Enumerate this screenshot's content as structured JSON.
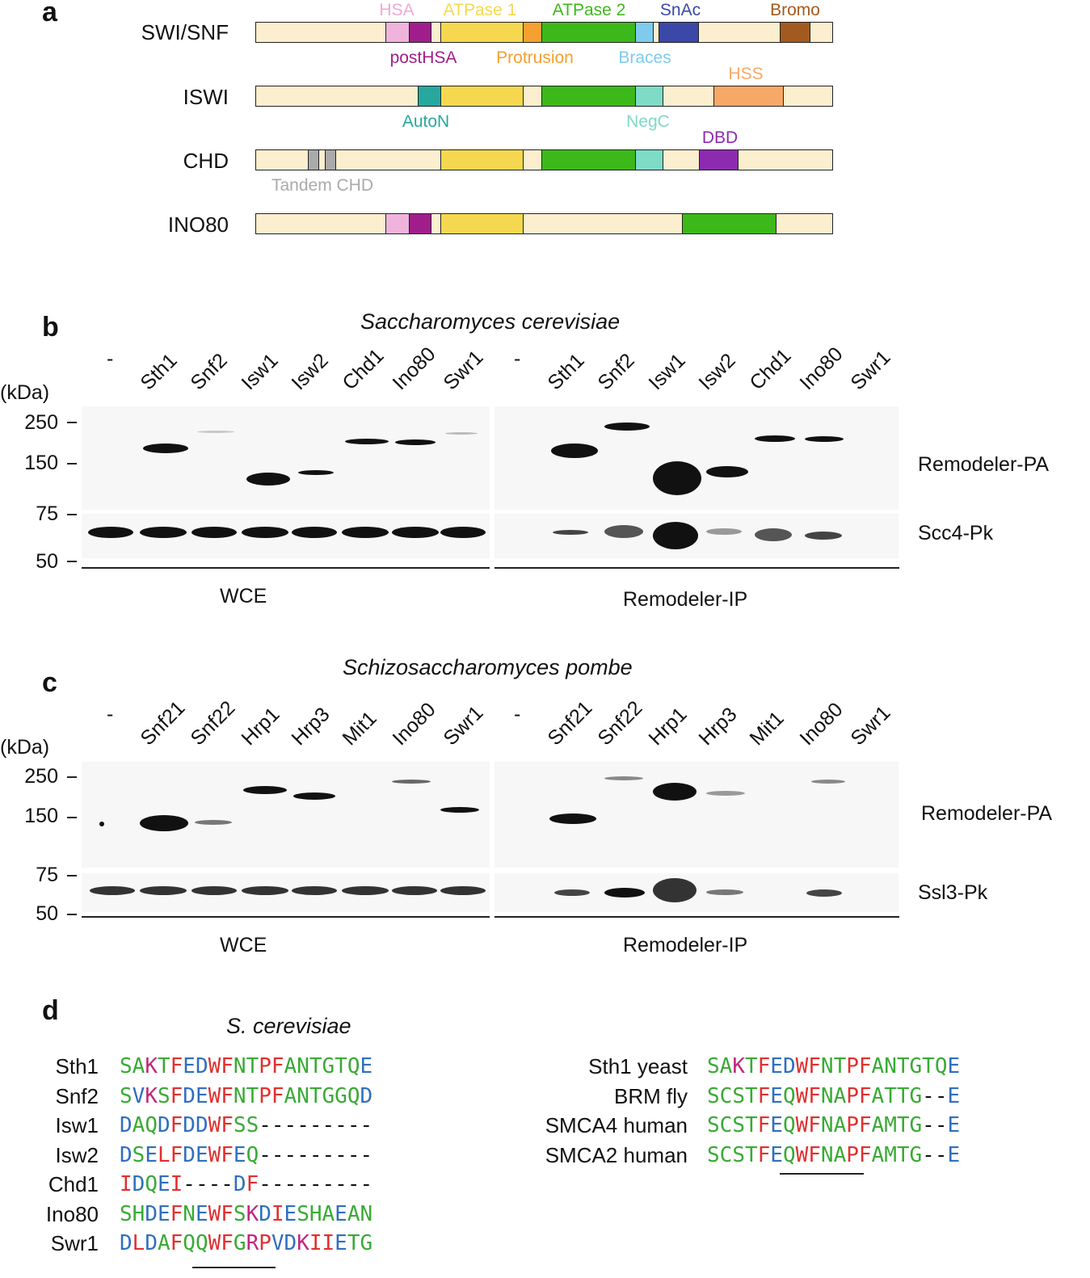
{
  "panel_a": {
    "letter": "a",
    "proteins": [
      {
        "name": "SWI/SNF"
      },
      {
        "name": "ISWI"
      },
      {
        "name": "CHD"
      },
      {
        "name": "INO80"
      }
    ],
    "domain_labels": {
      "hsa": "HSA",
      "atpase1": "ATPase 1",
      "atpase2": "ATPase 2",
      "snac": "SnAc",
      "bromo": "Bromo",
      "posthsa": "postHSA",
      "protrusion": "Protrusion",
      "braces": "Braces",
      "hss": "HSS",
      "auton": "AutoN",
      "negc": "NegC",
      "dbd": "DBD",
      "tandem_chd": "Tandem CHD"
    },
    "colors": {
      "background": "#fbefcf",
      "hsa": "#f0b3dc",
      "posthsa": "#a01e8c",
      "atpase1": "#f5d84f",
      "protrusion": "#f5a030",
      "atpase2": "#3db81a",
      "braces": "#7ecbee",
      "snac": "#3b48a8",
      "bromo": "#a35a1e",
      "auton": "#26a89e",
      "negc": "#7ddbc6",
      "hss": "#f8a866",
      "dbd": "#8c2ab0",
      "tandem": "#aaaaaa"
    }
  },
  "panel_b": {
    "letter": "b",
    "species": "Saccharomyces cerevisiae",
    "lanes_left": [
      "-",
      "Sth1",
      "Snf2",
      "Isw1",
      "Isw2",
      "Chd1",
      "Ino80",
      "Swr1"
    ],
    "lanes_right": [
      "-",
      "Sth1",
      "Snf2",
      "Isw1",
      "Isw2",
      "Chd1",
      "Ino80",
      "Swr1"
    ],
    "kda_unit": "(kDa)",
    "markers": [
      "250",
      "150",
      "75",
      "50"
    ],
    "row_labels": [
      "Remodeler-PA",
      "Scc4-Pk"
    ],
    "group_labels": [
      "WCE",
      "Remodeler-IP"
    ]
  },
  "panel_c": {
    "letter": "c",
    "species": "Schizosaccharomyces pombe",
    "lanes_left": [
      "-",
      "Snf21",
      "Snf22",
      "Hrp1",
      "Hrp3",
      "Mit1",
      "Ino80",
      "Swr1"
    ],
    "lanes_right": [
      "-",
      "Snf21",
      "Snf22",
      "Hrp1",
      "Hrp3",
      "Mit1",
      "Ino80",
      "Swr1"
    ],
    "kda_unit": "(kDa)",
    "markers": [
      "250",
      "150",
      "75",
      "50"
    ],
    "row_labels": [
      "Remodeler-PA",
      "Ssl3-Pk"
    ],
    "group_labels": [
      "WCE",
      "Remodeler-IP"
    ]
  },
  "panel_d": {
    "letter": "d",
    "species": "S. cerevisiae",
    "left_alignment": [
      {
        "name": "Sth1",
        "seq": "SAKTFEDWFNTPFANTGTQE"
      },
      {
        "name": "Snf2",
        "seq": "SVKSFDEWFNTPFANTGGQD"
      },
      {
        "name": "Isw1",
        "seq": "DAQDFDDWFSS---------"
      },
      {
        "name": "Isw2",
        "seq": "DSELFDEWFEQ---------"
      },
      {
        "name": "Chd1",
        "seq": "IDQEI----DF---------"
      },
      {
        "name": "Ino80",
        "seq": "SHDEFNEWFSKDIESHAEAN"
      },
      {
        "name": "Swr1",
        "seq": "DLDAFQQWFGRPVDKIIETG"
      }
    ],
    "right_alignment": [
      {
        "name": "Sth1 yeast",
        "seq": "SAKTFEDWFNTPFANTGTQE"
      },
      {
        "name": "BRM fly",
        "seq": "SCSTFEQWFNAPFATTG--E"
      },
      {
        "name": "SMCA4 human",
        "seq": "SCSTFEQWFNAPFAMTG--E"
      },
      {
        "name": "SMCA2 human",
        "seq": "SCSTFEQWFNAPFAMTG--E"
      }
    ],
    "residue_colors": {
      "red": "#e03030",
      "blue": "#2f6fc0",
      "green": "#3aaa35",
      "magenta": "#c0287c",
      "dash": "#111111"
    }
  }
}
